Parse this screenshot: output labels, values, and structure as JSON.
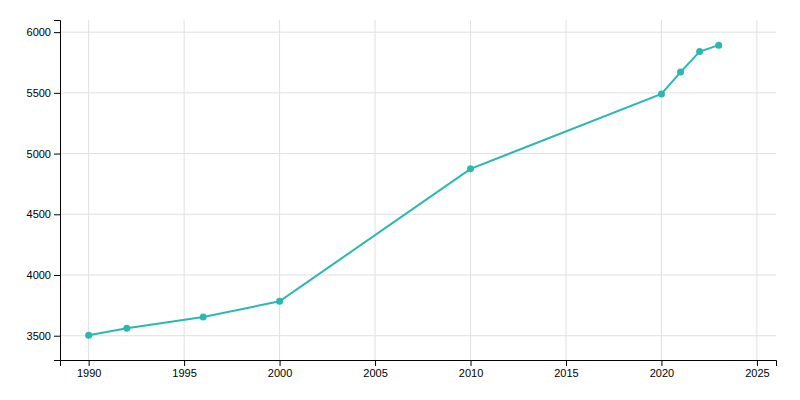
{
  "chart_data": {
    "type": "line",
    "x": [
      1990,
      1992,
      1996,
      2000,
      2010,
      2020,
      2021,
      2022,
      2023
    ],
    "values": [
      3504,
      3561,
      3654,
      3783,
      4874,
      5491,
      5671,
      5840,
      5893
    ],
    "color": "#2ab8b0",
    "marker": "circle",
    "xlim": [
      1988.5,
      2026
    ],
    "ylim": [
      3300,
      6100
    ],
    "xticks": [
      1990,
      1995,
      2000,
      2005,
      2010,
      2015,
      2020,
      2025
    ],
    "yticks": [
      3500,
      4000,
      4500,
      5000,
      5500,
      6000
    ],
    "grid": true
  }
}
